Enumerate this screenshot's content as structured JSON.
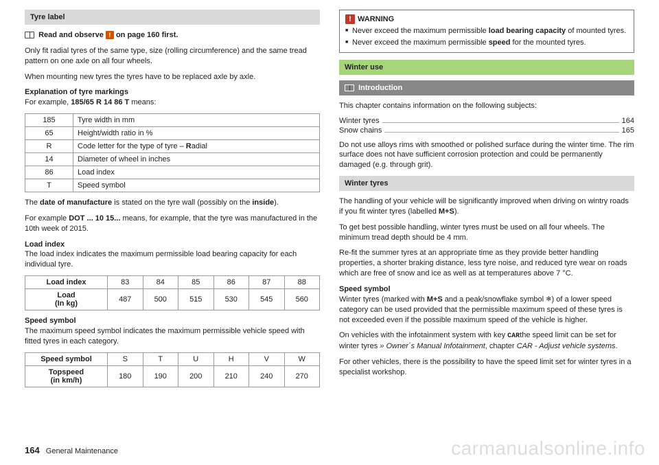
{
  "left": {
    "heading": "Tyre label",
    "readObserve_pre": "Read and observe",
    "readObserve_post": "on page 160 first.",
    "p1": "Only fit radial tyres of the same type, size (rolling circumference) and the same tread pattern on one axle on all four wheels.",
    "p2": "When mounting new tyres the tyres have to be replaced axle by axle.",
    "expl_h": "Explanation of tyre markings",
    "expl_eg_pre": "For example, ",
    "expl_eg_bold": "185/65 R 14 86 T",
    "expl_eg_post": " means:",
    "marking": [
      [
        "185",
        "Tyre width in mm"
      ],
      [
        "65",
        "Height/width ratio in %"
      ],
      [
        "R",
        "Code letter for the type of tyre – Radial"
      ],
      [
        "14",
        "Diameter of wheel in inches"
      ],
      [
        "86",
        "Load index"
      ],
      [
        "T",
        "Speed symbol"
      ]
    ],
    "dom_pre": "The ",
    "dom_b1": "date of manufacture",
    "dom_mid": " is stated on the tyre wall (possibly on the ",
    "dom_b2": "inside",
    "dom_post": ").",
    "dot_pre": "For example ",
    "dot_b": "DOT ... 10 15...",
    "dot_post": " means, for example, that the tyre was manufactured in the 10th week of 2015.",
    "load_h": "Load index",
    "load_p": "The load index indicates the maximum permissible load bearing capacity for each individual tyre.",
    "load_tbl": {
      "row1_label": "Load index",
      "row1": [
        "83",
        "84",
        "85",
        "86",
        "87",
        "88"
      ],
      "row2_label": "Load\n(In kg)",
      "row2": [
        "487",
        "500",
        "515",
        "530",
        "545",
        "560"
      ]
    },
    "speed_h": "Speed symbol",
    "speed_p": "The maximum speed symbol indicates the maximum permissible vehicle speed with fitted tyres in each category.",
    "speed_tbl": {
      "row1_label": "Speed symbol",
      "row1": [
        "S",
        "T",
        "U",
        "H",
        "V",
        "W"
      ],
      "row2_label": "Topspeed\n(in km/h)",
      "row2": [
        "180",
        "190",
        "200",
        "210",
        "240",
        "270"
      ]
    }
  },
  "right": {
    "warn_title": "WARNING",
    "warn_items": [
      {
        "pre": "Never exceed the maximum permissible ",
        "b": "load bearing capacity",
        "post": " of mounted tyres."
      },
      {
        "pre": "Never exceed the maximum permissible ",
        "b": "speed",
        "post": " for the mounted tyres."
      }
    ],
    "winter_h": "Winter use",
    "intro_h": "Introduction",
    "intro_p": "This chapter contains information on the following subjects:",
    "toc": [
      {
        "label": "Winter tyres",
        "page": "164"
      },
      {
        "label": "Snow chains",
        "page": "165"
      }
    ],
    "intro_p2": "Do not use alloys rims with smoothed or polished surface during the winter time. The rim surface does not have sufficient corrosion protection and could be permanently damaged (e.g. through grit).",
    "wt_h": "Winter tyres",
    "wt_p1_pre": "The handling of your vehicle will be significantly improved when driving on wintry roads if you fit winter tyres (labelled ",
    "wt_p1_b": "M+S",
    "wt_p1_post": ").",
    "wt_p2": "To get best possible handling, winter tyres must be used on all four wheels. The minimum tread depth should be 4 mm.",
    "wt_p3": "Re-fit the summer tyres at an appropriate time as they provide better handling properties, a shorter braking distance, less tyre noise, and reduced tyre wear on roads which are free of snow and ice as well as at temperatures above 7 °C.",
    "ss_h": "Speed symbol",
    "ss_p1_pre": "Winter tyres (marked with ",
    "ss_p1_b1": "M+S",
    "ss_p1_mid": " and a peak/snowflake symbol ",
    "ss_p1_post": ") of a lower speed category can be used provided that the permissible maximum speed of these tyres is not exceeded even if the possible maximum speed of the vehicle is higher.",
    "ss_p2_pre": "On vehicles with the infotainment system with key ",
    "ss_p2_key": "CAR",
    "ss_p2_mid": "the speed limit can be set for winter tyres ",
    "ss_p2_ref": "» Owner´s Manual Infotainment",
    "ss_p2_post": ", chapter ",
    "ss_p2_it": "CAR - Adjust vehicle systems",
    "ss_p2_end": ".",
    "ss_p3": "For other vehicles, there is the possibility to have the speed limit set for winter tyres in a specialist workshop."
  },
  "footer": {
    "page": "164",
    "section": "General Maintenance"
  },
  "watermark": "carmanualsonline.info"
}
